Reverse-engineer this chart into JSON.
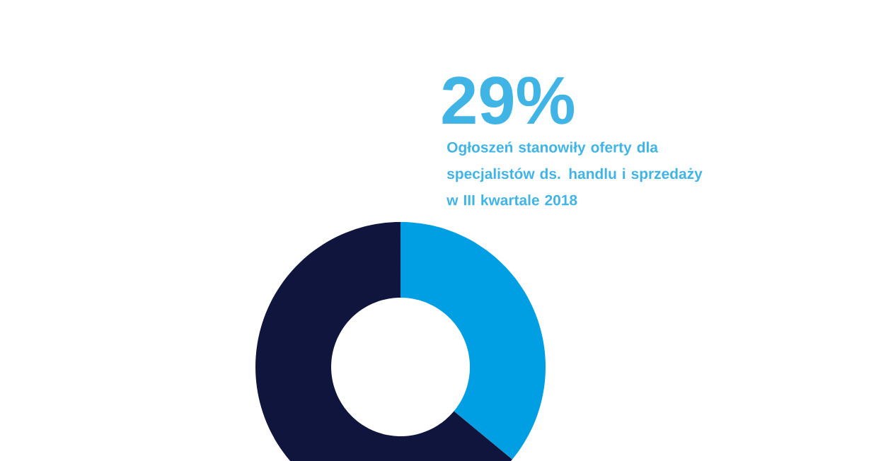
{
  "chart_data": {
    "type": "donut",
    "title": "29%",
    "subtitle": "Ogłoszeń stanowiły oferty dla specjalistów ds. handlu i sprzedaży w III kwartale 2018",
    "categories": [
      null,
      null
    ],
    "values": [
      36,
      64
    ],
    "colors": [
      "#009fe3",
      "#0f153d"
    ]
  }
}
